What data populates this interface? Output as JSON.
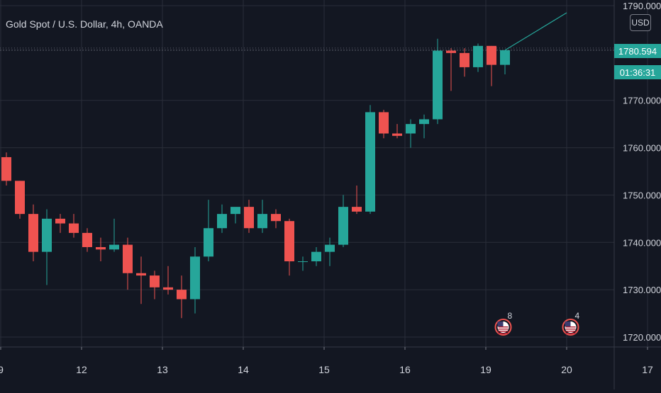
{
  "header": {
    "title": "Gold Spot / U.S. Dollar, 4h, OANDA",
    "currency": "USD"
  },
  "price_badge": {
    "price": "1780.594",
    "countdown": "01:36:31"
  },
  "events": [
    {
      "label": "8"
    },
    {
      "label": "4"
    }
  ],
  "colors": {
    "background": "#131722",
    "up": "#26a69a",
    "down": "#ef5350",
    "grid": "#2a2e39",
    "text": "#d1d4dc"
  },
  "chart_data": {
    "type": "candlestick",
    "symbol": "Gold Spot / U.S. Dollar",
    "interval": "4h",
    "source": "OANDA",
    "ylim": [
      1718,
      1790
    ],
    "y_ticks": [
      "1720.000",
      "1730.000",
      "1740.000",
      "1750.000",
      "1760.000",
      "1770.000",
      "1790.000"
    ],
    "x_ticks": [
      {
        "label": "9",
        "bar": 0
      },
      {
        "label": "12",
        "bar": 6
      },
      {
        "label": "13",
        "bar": 12
      },
      {
        "label": "14",
        "bar": 18
      },
      {
        "label": "15",
        "bar": 24
      },
      {
        "label": "16",
        "bar": 30
      },
      {
        "label": "19",
        "bar": 36
      },
      {
        "label": "20",
        "bar": 42
      },
      {
        "label": "17",
        "bar": 48
      }
    ],
    "candles": [
      {
        "o": 1758,
        "h": 1759,
        "l": 1752,
        "c": 1753
      },
      {
        "o": 1753,
        "h": 1753,
        "l": 1745,
        "c": 1746
      },
      {
        "o": 1746,
        "h": 1748,
        "l": 1736,
        "c": 1738
      },
      {
        "o": 1738,
        "h": 1747,
        "l": 1731,
        "c": 1745
      },
      {
        "o": 1745,
        "h": 1746,
        "l": 1742,
        "c": 1744
      },
      {
        "o": 1744,
        "h": 1746,
        "l": 1741,
        "c": 1742
      },
      {
        "o": 1742,
        "h": 1743,
        "l": 1738,
        "c": 1739
      },
      {
        "o": 1739,
        "h": 1741,
        "l": 1736,
        "c": 1738.5
      },
      {
        "o": 1738.5,
        "h": 1745,
        "l": 1738,
        "c": 1739.5
      },
      {
        "o": 1739.5,
        "h": 1741,
        "l": 1730,
        "c": 1733.5
      },
      {
        "o": 1733.5,
        "h": 1737,
        "l": 1727,
        "c": 1733
      },
      {
        "o": 1733,
        "h": 1734,
        "l": 1728,
        "c": 1730.5
      },
      {
        "o": 1730.5,
        "h": 1735,
        "l": 1729,
        "c": 1730
      },
      {
        "o": 1730,
        "h": 1733,
        "l": 1724,
        "c": 1728
      },
      {
        "o": 1728,
        "h": 1739,
        "l": 1725,
        "c": 1737
      },
      {
        "o": 1737,
        "h": 1749,
        "l": 1736,
        "c": 1743
      },
      {
        "o": 1743,
        "h": 1748,
        "l": 1742,
        "c": 1746
      },
      {
        "o": 1746,
        "h": 1747,
        "l": 1744,
        "c": 1747.5
      },
      {
        "o": 1747.5,
        "h": 1749,
        "l": 1742,
        "c": 1743
      },
      {
        "o": 1743,
        "h": 1749,
        "l": 1742,
        "c": 1746
      },
      {
        "o": 1746,
        "h": 1747,
        "l": 1743,
        "c": 1744.5
      },
      {
        "o": 1744.5,
        "h": 1745,
        "l": 1733,
        "c": 1736
      },
      {
        "o": 1736,
        "h": 1737,
        "l": 1734,
        "c": 1736
      },
      {
        "o": 1736,
        "h": 1739,
        "l": 1735,
        "c": 1738
      },
      {
        "o": 1738,
        "h": 1741,
        "l": 1735,
        "c": 1739.5
      },
      {
        "o": 1739.5,
        "h": 1750,
        "l": 1739,
        "c": 1747.5
      },
      {
        "o": 1747.5,
        "h": 1752,
        "l": 1746,
        "c": 1746.5
      },
      {
        "o": 1746.5,
        "h": 1769,
        "l": 1746,
        "c": 1767.5
      },
      {
        "o": 1767.5,
        "h": 1768,
        "l": 1762,
        "c": 1763
      },
      {
        "o": 1763,
        "h": 1765,
        "l": 1762,
        "c": 1762.5
      },
      {
        "o": 1763,
        "h": 1766,
        "l": 1760,
        "c": 1765
      },
      {
        "o": 1765,
        "h": 1767,
        "l": 1762,
        "c": 1766
      },
      {
        "o": 1766,
        "h": 1783,
        "l": 1765,
        "c": 1780.5
      },
      {
        "o": 1780.5,
        "h": 1781,
        "l": 1772,
        "c": 1780
      },
      {
        "o": 1780,
        "h": 1781,
        "l": 1775,
        "c": 1777
      },
      {
        "o": 1777,
        "h": 1782,
        "l": 1776,
        "c": 1781.5
      },
      {
        "o": 1781.5,
        "h": 1781.5,
        "l": 1773,
        "c": 1777.5
      },
      {
        "o": 1777.5,
        "h": 1780.6,
        "l": 1775.5,
        "c": 1780.594
      }
    ],
    "projection": {
      "start_bar": 37,
      "start": 1780.594,
      "end_bar": 42,
      "end": 1788.5
    },
    "current_price": 1780.594,
    "event_bars": [
      37.5,
      42.5
    ]
  }
}
